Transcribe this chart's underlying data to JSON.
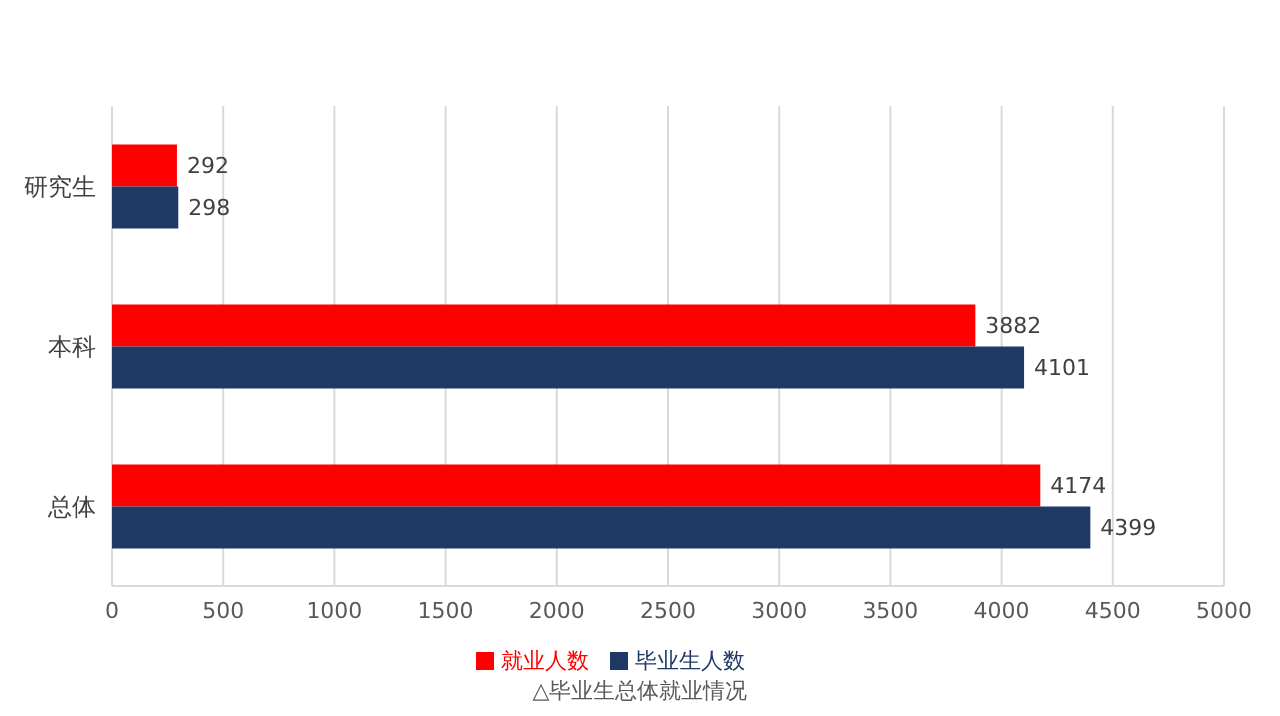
{
  "chart_data": {
    "type": "bar",
    "orientation": "horizontal",
    "categories": [
      "研究生",
      "本科",
      "总体"
    ],
    "series": [
      {
        "name": "就业人数",
        "color": "#ff0000",
        "values": [
          292,
          3882,
          4174
        ]
      },
      {
        "name": "毕业生人数",
        "color": "#1f3864",
        "values": [
          298,
          4101,
          4399
        ]
      }
    ],
    "xlim": [
      0,
      5000
    ],
    "xticks": [
      0,
      500,
      1000,
      1500,
      2000,
      2500,
      3000,
      3500,
      4000,
      4500,
      5000
    ],
    "grid": "x",
    "legend": "bottom",
    "data_labels": true,
    "annotations": [
      "△毕业生总体就业情况"
    ]
  }
}
